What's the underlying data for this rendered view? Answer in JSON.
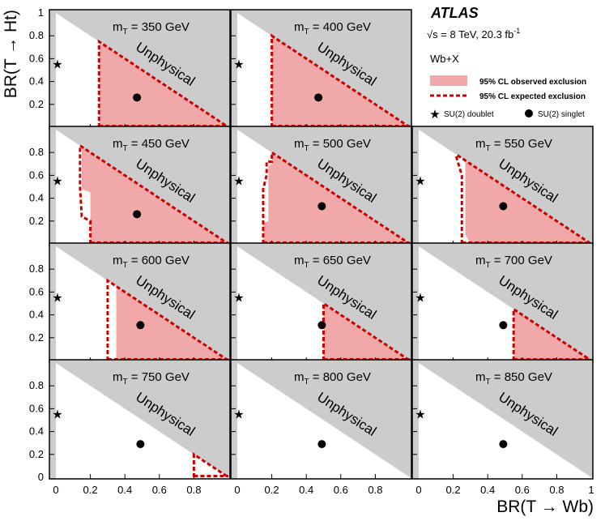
{
  "chart_data": {
    "type": "scatter",
    "layout": {
      "rows": 4,
      "cols": 3
    },
    "xlabel": "BR(T → Wb)",
    "ylabel": "BR(T → Ht)",
    "xlim": [
      0,
      1
    ],
    "ylim": [
      0,
      1
    ],
    "x_ticks": [
      "0",
      "0.2",
      "0.4",
      "0.6",
      "0.8",
      "1"
    ],
    "y_ticks_top": [
      "0.2",
      "0.4",
      "0.6",
      "0.8",
      "1"
    ],
    "y_ticks": [
      "0.2",
      "0.4",
      "0.6",
      "0.8"
    ],
    "bottom_y_ticks": [
      "0",
      "0.2",
      "0.4",
      "0.6",
      "0.8"
    ],
    "unphysical_label": "Unphysical",
    "experiment": "ATLAS",
    "energy_text": "s = 8 TeV, 20.3  fb",
    "energy_sup": "-1",
    "sqrt_symbol": "√",
    "process": "Wb+X",
    "legend": {
      "observed": "95% CL observed exclusion",
      "expected": "95% CL expected exclusion",
      "doublet": "SU(2) doublet",
      "singlet": "SU(2) singlet"
    },
    "colors": {
      "observed_fill": "#f0a8a8",
      "expected_line": "#cc0000",
      "unphysical": "#cccccc",
      "frame": "#000000"
    },
    "doublet_point": {
      "x": 0,
      "y": 0.55
    },
    "panels": [
      {
        "mass_label": "m",
        "mass_sub": "T",
        "mass_value": " = 350 GeV",
        "singlet": [
          0.47,
          0.26
        ],
        "observed": [
          [
            0.25,
            0
          ],
          [
            0.25,
            0.75
          ],
          [
            1,
            0
          ]
        ],
        "expected": [
          [
            0.25,
            0
          ],
          [
            0.25,
            0.75
          ]
        ]
      },
      {
        "mass_label": "m",
        "mass_sub": "T",
        "mass_value": " = 400 GeV",
        "singlet": [
          0.47,
          0.26
        ],
        "observed": [
          [
            0.2,
            0
          ],
          [
            0.2,
            0.8
          ],
          [
            1,
            0
          ]
        ],
        "expected": [
          [
            0.2,
            0
          ],
          [
            0.2,
            0.8
          ]
        ]
      },
      {
        "mass_label": "m",
        "mass_sub": "T",
        "mass_value": " = 450 GeV",
        "singlet": [
          0.47,
          0.26
        ],
        "observed": [
          [
            0.2,
            0
          ],
          [
            0.2,
            0.45
          ],
          [
            0.15,
            0.48
          ],
          [
            0.15,
            0.85
          ],
          [
            1,
            0
          ]
        ],
        "expected": [
          [
            0.2,
            0
          ],
          [
            0.2,
            0.2
          ],
          [
            0.15,
            0.24
          ],
          [
            0.14,
            0.5
          ],
          [
            0.14,
            0.86
          ]
        ]
      },
      {
        "mass_label": "m",
        "mass_sub": "T",
        "mass_value": " = 500 GeV",
        "singlet": [
          0.49,
          0.33
        ],
        "observed": [
          [
            0.15,
            0
          ],
          [
            0.15,
            0.18
          ],
          [
            0.18,
            0.2
          ],
          [
            0.18,
            0.68
          ],
          [
            0.2,
            0.7
          ],
          [
            0.2,
            0.8
          ],
          [
            1,
            0
          ]
        ],
        "expected": [
          [
            0.15,
            0
          ],
          [
            0.15,
            0.48
          ],
          [
            0.17,
            0.6
          ],
          [
            0.17,
            0.72
          ],
          [
            0.2,
            0.72
          ],
          [
            0.2,
            0.8
          ]
        ]
      },
      {
        "mass_label": "m",
        "mass_sub": "T",
        "mass_value": " = 550 GeV",
        "singlet": [
          0.49,
          0.33
        ],
        "observed": [
          [
            0.3,
            0
          ],
          [
            0.27,
            0.08
          ],
          [
            0.27,
            0.73
          ],
          [
            1,
            0
          ]
        ],
        "expected": [
          [
            0.25,
            0
          ],
          [
            0.25,
            0.6
          ],
          [
            0.22,
            0.75
          ],
          [
            0.22,
            0.78
          ]
        ]
      },
      {
        "mass_label": "m",
        "mass_sub": "T",
        "mass_value": " = 600 GeV",
        "singlet": [
          0.49,
          0.31
        ],
        "observed": [
          [
            0.35,
            0
          ],
          [
            0.35,
            0.65
          ],
          [
            1,
            0
          ]
        ],
        "expected": [
          [
            0.3,
            0
          ],
          [
            0.3,
            0.7
          ]
        ]
      },
      {
        "mass_label": "m",
        "mass_sub": "T",
        "mass_value": " = 650 GeV",
        "singlet": [
          0.49,
          0.31
        ],
        "observed": [
          [
            0.5,
            0
          ],
          [
            0.5,
            0.5
          ],
          [
            1,
            0
          ]
        ],
        "expected": [
          [
            0.5,
            0
          ],
          [
            0.5,
            0.5
          ]
        ]
      },
      {
        "mass_label": "m",
        "mass_sub": "T",
        "mass_value": " = 700 GeV",
        "singlet": [
          0.49,
          0.31
        ],
        "observed": [
          [
            0.55,
            0
          ],
          [
            0.55,
            0.45
          ],
          [
            1,
            0
          ]
        ],
        "expected": [
          [
            0.55,
            0
          ],
          [
            0.55,
            0.45
          ]
        ]
      },
      {
        "mass_label": "m",
        "mass_sub": "T",
        "mass_value": " = 750 GeV",
        "singlet": [
          0.49,
          0.29
        ],
        "observed": [],
        "expected": [
          [
            0.8,
            0
          ],
          [
            0.8,
            0.2
          ]
        ]
      },
      {
        "mass_label": "m",
        "mass_sub": "T",
        "mass_value": " = 800 GeV",
        "singlet": [
          0.49,
          0.29
        ],
        "observed": [],
        "expected": []
      },
      {
        "mass_label": "m",
        "mass_sub": "T",
        "mass_value": " = 850 GeV",
        "singlet": [
          0.49,
          0.29
        ],
        "observed": [],
        "expected": []
      }
    ]
  }
}
